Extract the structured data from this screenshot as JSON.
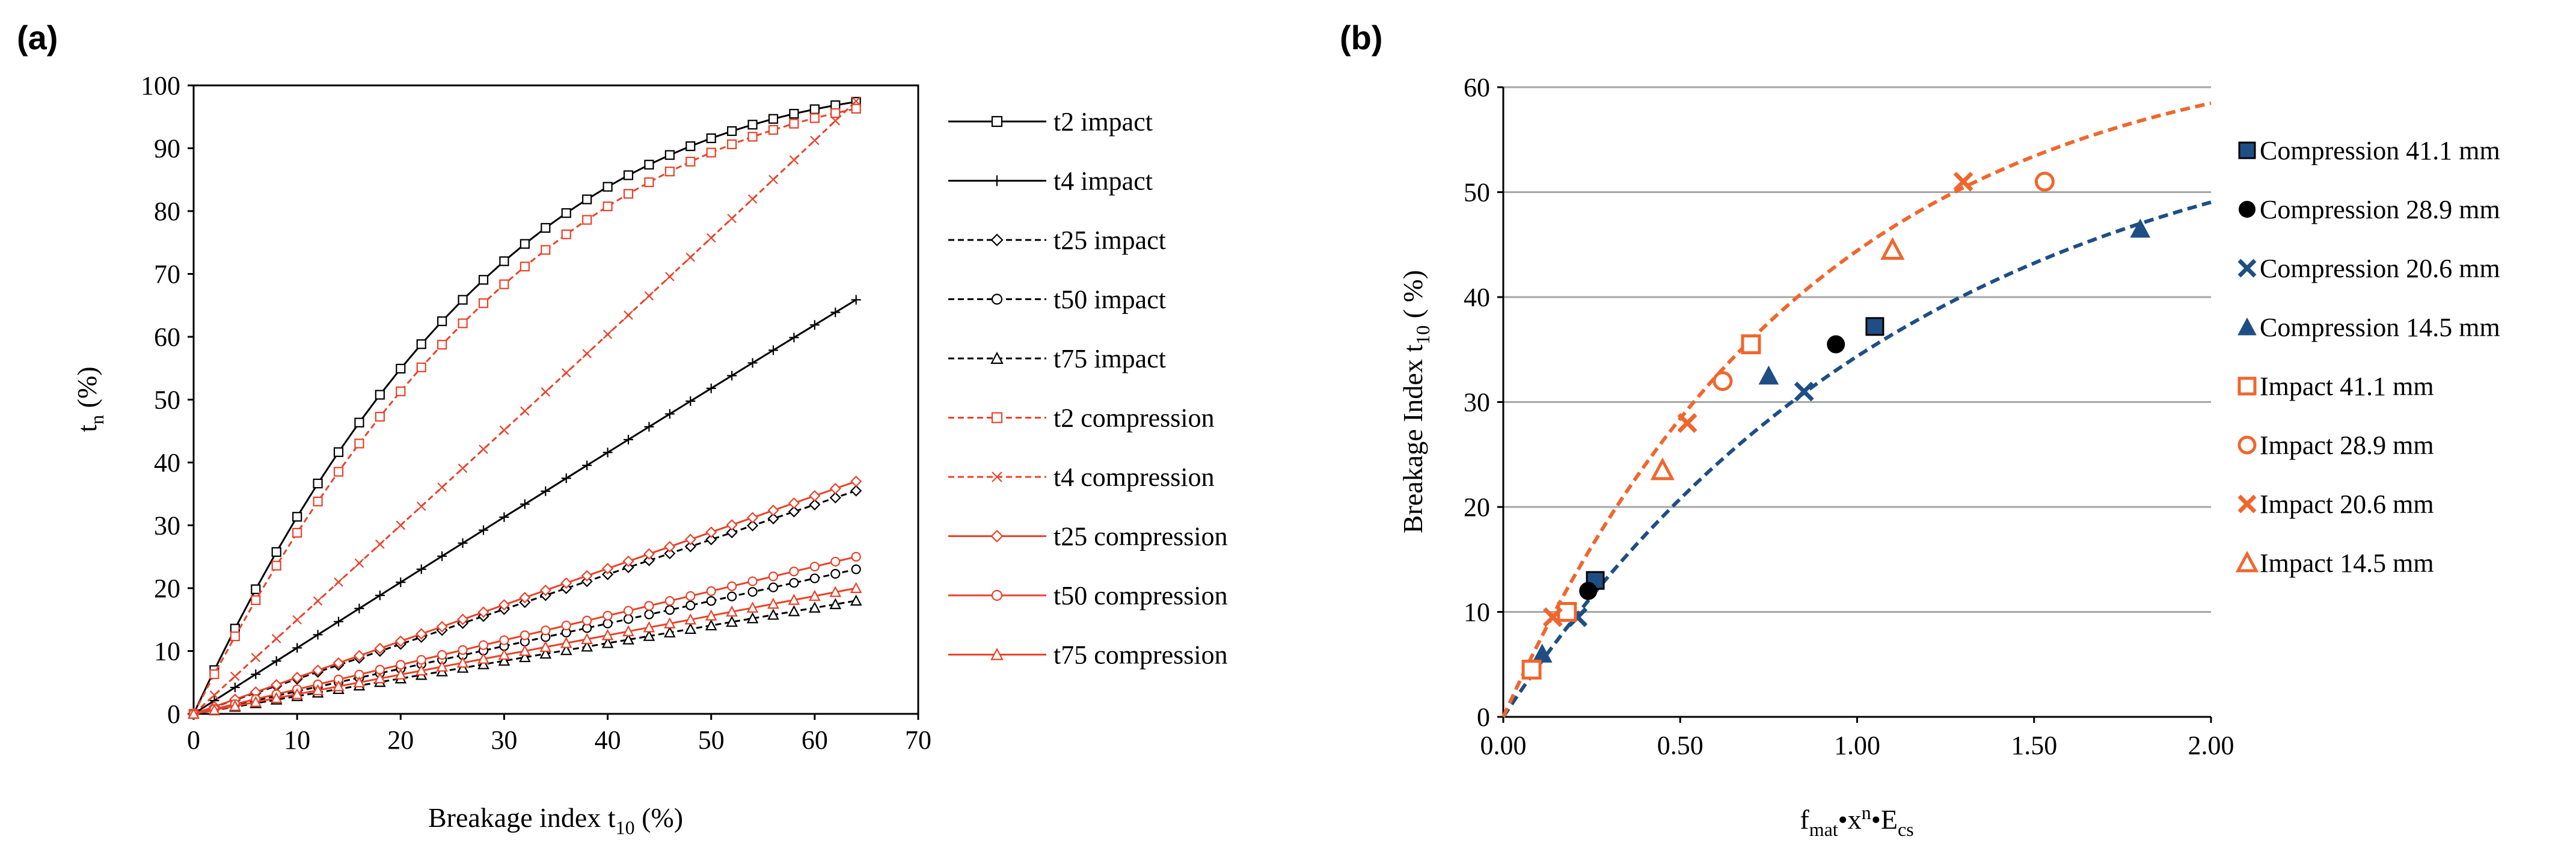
{
  "chart_data": [
    {
      "panel": "(a)",
      "type": "line",
      "title": "",
      "xlabel": "Breakage index t",
      "xlabel_sub": "10",
      "xlabel_suffix": " (%)",
      "ylabel": "t",
      "ylabel_sub": "n",
      "ylabel_suffix": " (%)",
      "xlim": [
        0,
        70
      ],
      "ylim": [
        0,
        100
      ],
      "xticks": [
        "0",
        "10",
        "20",
        "30",
        "40",
        "50",
        "60",
        "70"
      ],
      "yticks": [
        "0",
        "10",
        "20",
        "30",
        "40",
        "50",
        "60",
        "70",
        "80",
        "90",
        "100"
      ],
      "legend_position": "right",
      "colors": {
        "impact": "#000000",
        "compression": "#e8432a"
      },
      "series": [
        {
          "name": "t2 impact",
          "group": "impact",
          "marker": "square",
          "dashed": false,
          "p": 0.28,
          "cap": true
        },
        {
          "name": "t4 impact",
          "group": "impact",
          "marker": "plus",
          "dashed": false,
          "p": 0.95,
          "cap": true
        },
        {
          "name": "t25 impact",
          "group": "impact",
          "marker": "diamond",
          "dashed": true,
          "linear_end": 35.5
        },
        {
          "name": "t50 impact",
          "group": "impact",
          "marker": "circle",
          "dashed": true,
          "linear_end": 23
        },
        {
          "name": "t75 impact",
          "group": "impact",
          "marker": "triangle",
          "dashed": true,
          "linear_end": 18
        },
        {
          "name": "t2 compression",
          "group": "compression",
          "marker": "square",
          "dashed": true,
          "p": 0.31,
          "cap": true
        },
        {
          "name": "t4 compression",
          "group": "compression",
          "marker": "x",
          "dashed": true,
          "p": 1.05,
          "cap": true,
          "end": 97.5
        },
        {
          "name": "t25 compression",
          "group": "compression",
          "marker": "diamond",
          "dashed": false,
          "linear_end": 37
        },
        {
          "name": "t50 compression",
          "group": "compression",
          "marker": "circle",
          "dashed": false,
          "linear_end": 25
        },
        {
          "name": "t75 compression",
          "group": "compression",
          "marker": "triangle",
          "dashed": false,
          "linear_end": 20
        }
      ],
      "x": [
        0,
        2,
        4,
        6,
        8,
        10,
        12,
        14,
        16,
        18,
        20,
        22,
        24,
        26,
        28,
        30,
        32,
        34,
        36,
        38,
        40,
        42,
        44,
        46,
        48,
        50,
        52,
        54,
        56,
        58,
        60,
        62,
        64
      ]
    },
    {
      "panel": "(b)",
      "type": "scatter",
      "title": "",
      "xlabel": "f",
      "xlabel_parts": [
        "mat",
        "•x",
        "n",
        "•E",
        "cs"
      ],
      "ylabel": "Breakage Index t",
      "ylabel_sub": "10",
      "ylabel_suffix": " ( %)",
      "xlim": [
        0,
        2
      ],
      "ylim": [
        0,
        60
      ],
      "xticks": [
        "0.00",
        "0.50",
        "1.00",
        "1.50",
        "2.00"
      ],
      "yticks": [
        "0",
        "10",
        "20",
        "30",
        "40",
        "50",
        "60"
      ],
      "grid": true,
      "legend_position": "right",
      "colors": {
        "compression": "#1f4e85",
        "compression_dark": "#0d2b55",
        "impact": "#f0662d"
      },
      "fit_curves": [
        {
          "name": "compression fit",
          "group": "compression",
          "A": 60,
          "b": 0.85
        },
        {
          "name": "impact fit",
          "group": "impact",
          "A": 65,
          "b": 1.15
        }
      ],
      "series": [
        {
          "name": "Compression 41.1 mm",
          "group": "compression",
          "marker": "filled-square",
          "points": [
            [
              0.26,
              13
            ],
            [
              1.05,
              37.2
            ]
          ]
        },
        {
          "name": "Compression 28.9 mm",
          "group": "compression",
          "marker": "filled-circle",
          "points": [
            [
              0.24,
              12
            ],
            [
              0.94,
              35.5
            ]
          ]
        },
        {
          "name": "Compression 20.6 mm",
          "group": "compression",
          "marker": "x",
          "points": [
            [
              0.21,
              9.5
            ],
            [
              0.85,
              31
            ]
          ]
        },
        {
          "name": "Compression 14.5 mm",
          "group": "compression",
          "marker": "filled-triangle",
          "points": [
            [
              0.11,
              6
            ],
            [
              0.75,
              32.5
            ],
            [
              1.8,
              46.5
            ]
          ]
        },
        {
          "name": "Impact 41.1 mm",
          "group": "impact",
          "marker": "open-square",
          "points": [
            [
              0.08,
              4.5
            ],
            [
              0.18,
              10
            ],
            [
              0.7,
              35.5
            ]
          ]
        },
        {
          "name": "Impact 28.9 mm",
          "group": "impact",
          "marker": "open-circle",
          "points": [
            [
              0.62,
              32
            ],
            [
              1.53,
              51
            ]
          ]
        },
        {
          "name": "Impact 20.6 mm",
          "group": "impact",
          "marker": "x",
          "points": [
            [
              0.14,
              9.5
            ],
            [
              0.52,
              28
            ],
            [
              1.3,
              51
            ]
          ]
        },
        {
          "name": "Impact 14.5 mm",
          "group": "impact",
          "marker": "open-triangle",
          "points": [
            [
              0.45,
              23.5
            ],
            [
              1.1,
              44.5
            ]
          ]
        }
      ]
    }
  ]
}
